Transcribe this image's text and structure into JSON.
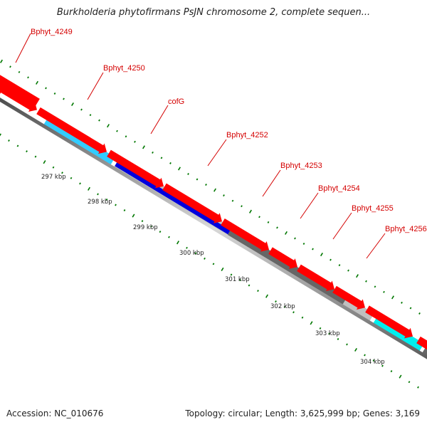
{
  "title": "Burkholderia phytofirmans PsJN chromosome 2, complete sequen...",
  "footer": {
    "accession": "Accession: NC_010676",
    "topology": "Topology: circular; Length: 3,625,999 bp; Genes: 3,169"
  },
  "colors": {
    "cds_arrow": "#ff0000",
    "backbone": "#888888",
    "tick": "#007700",
    "label": "#d40000",
    "bar_light_blue": "#33ccff",
    "bar_blue": "#0000dd",
    "bar_light_gray": "#c0c0c0",
    "bar_dark_gray": "#666666",
    "bar_cyan": "#00eeee"
  },
  "genes": [
    {
      "label": "Bphyt_4249"
    },
    {
      "label": "Bphyt_4250"
    },
    {
      "label": "cofG"
    },
    {
      "label": "Bphyt_4252"
    },
    {
      "label": "Bphyt_4253"
    },
    {
      "label": "Bphyt_4254"
    },
    {
      "label": "Bphyt_4255"
    },
    {
      "label": "Bphyt_4256"
    }
  ],
  "kbp_ticks": [
    "297 kbp",
    "298 kbp",
    "299 kbp",
    "300 kbp",
    "301 kbp",
    "302 kbp",
    "303 kbp",
    "304 kbp"
  ]
}
